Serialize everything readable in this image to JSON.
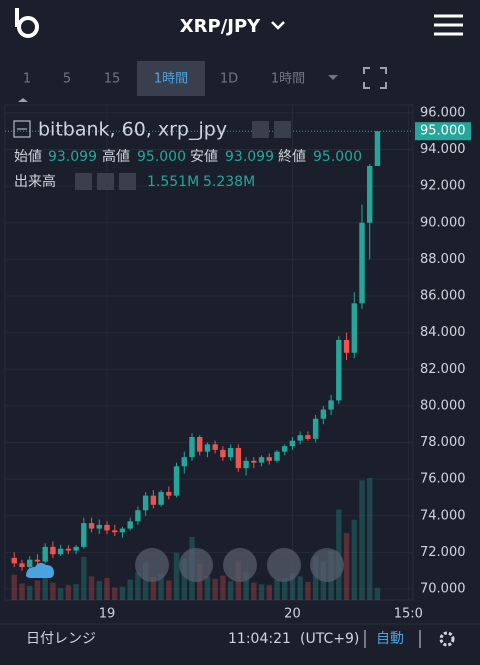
{
  "header": {
    "title": "XRP/JPY"
  },
  "toolbar": {
    "items": [
      "1",
      "5",
      "15",
      "1時間",
      "1D",
      "1時間"
    ]
  },
  "chart_data": {
    "type": "candlestick",
    "legend": {
      "title": "bitbank, 60, xrp_jpy",
      "open_label": "始値",
      "open": "93.099",
      "high_label": "高値",
      "high": "95.000",
      "low_label": "安値",
      "low": "93.099",
      "close_label": "終値",
      "close": "95.000",
      "volume_label": "出来高",
      "volume": "1.551M",
      "volume_ma": "5.238M"
    },
    "last_price_label": "95.000",
    "x": [
      -12,
      -11,
      -10,
      -9,
      -8,
      -7,
      -6,
      -5,
      -4,
      -3,
      -2,
      -1,
      0,
      1,
      2,
      3,
      4,
      5,
      6,
      7,
      8,
      9,
      10,
      11,
      12,
      13,
      14,
      15,
      16,
      17,
      18,
      19,
      20,
      21,
      22,
      23,
      24,
      25,
      26,
      27,
      28,
      29,
      30,
      31,
      32,
      33,
      34,
      35
    ],
    "open": [
      71.7,
      71.4,
      71.2,
      71.6,
      71.5,
      72.3,
      71.9,
      72.2,
      72.1,
      72.3,
      73.6,
      73.3,
      73.5,
      73.2,
      73.1,
      73.3,
      73.7,
      74.3,
      75.1,
      74.6,
      75.3,
      75.1,
      76.7,
      77.2,
      78.3,
      77.5,
      77.9,
      77.6,
      77.2,
      77.7,
      76.6,
      77.0,
      76.9,
      77.2,
      77.0,
      77.5,
      77.8,
      78.1,
      78.4,
      78.2,
      79.3,
      79.8,
      80.3,
      83.6,
      82.9,
      85.6,
      90.0,
      93.099
    ],
    "high": [
      72.0,
      71.6,
      71.8,
      71.9,
      72.5,
      72.6,
      72.4,
      72.4,
      72.4,
      73.9,
      73.9,
      73.8,
      73.7,
      73.5,
      73.4,
      73.9,
      74.5,
      75.3,
      75.4,
      75.4,
      75.6,
      76.9,
      77.5,
      78.5,
      78.4,
      78.0,
      78.1,
      77.8,
      77.9,
      77.9,
      77.2,
      77.2,
      77.3,
      77.4,
      77.6,
      77.9,
      78.3,
      78.6,
      78.6,
      79.5,
      80.0,
      80.6,
      83.8,
      84.0,
      86.2,
      91.0,
      93.2,
      95.0
    ],
    "low": [
      71.2,
      71.0,
      71.1,
      71.3,
      71.4,
      71.7,
      71.8,
      71.9,
      71.9,
      72.2,
      73.1,
      73.0,
      73.0,
      72.9,
      72.8,
      73.2,
      73.5,
      74.0,
      74.4,
      74.5,
      74.9,
      75.0,
      76.3,
      77.0,
      77.3,
      77.2,
      77.4,
      77.0,
      77.0,
      76.4,
      76.2,
      76.6,
      76.7,
      76.8,
      76.9,
      77.3,
      77.6,
      77.9,
      78.1,
      78.0,
      79.0,
      79.5,
      80.1,
      82.5,
      82.6,
      85.3,
      88.0,
      93.099
    ],
    "close": [
      71.4,
      71.2,
      71.6,
      71.5,
      72.3,
      71.9,
      72.2,
      72.1,
      72.3,
      73.6,
      73.3,
      73.5,
      73.2,
      73.1,
      73.3,
      73.7,
      74.3,
      75.1,
      74.6,
      75.3,
      75.1,
      76.7,
      77.2,
      78.3,
      77.5,
      77.9,
      77.6,
      77.2,
      77.7,
      76.6,
      77.0,
      76.9,
      77.2,
      77.0,
      77.5,
      77.8,
      78.1,
      78.4,
      78.2,
      79.3,
      79.8,
      80.3,
      83.6,
      82.9,
      85.6,
      90.0,
      93.099,
      95.0
    ],
    "volume": [
      3.2,
      2.1,
      1.8,
      2.5,
      4.0,
      2.2,
      1.5,
      1.9,
      2.0,
      5.5,
      3.0,
      2.4,
      2.8,
      1.6,
      1.7,
      2.6,
      3.5,
      4.8,
      2.9,
      3.3,
      2.5,
      6.0,
      5.2,
      8.0,
      4.6,
      3.0,
      2.7,
      3.1,
      2.4,
      5.0,
      3.6,
      2.2,
      2.0,
      1.9,
      2.6,
      2.8,
      3.4,
      3.0,
      2.3,
      5.6,
      4.9,
      6.2,
      11.5,
      8.5,
      10.2,
      15.2,
      15.5,
      1.551
    ],
    "up_color": "#26a69a",
    "down_color": "#ef5350",
    "xlim": [
      -13.2,
      39.6
    ],
    "ylim": [
      69.4,
      96.43
    ],
    "volume_lim": [
      0,
      62.9
    ],
    "xticks": [
      {
        "value": 0,
        "label": "19"
      },
      {
        "value": 24,
        "label": "20"
      },
      {
        "value": 39,
        "label": "15:0"
      }
    ],
    "yticks": [
      {
        "value": 70,
        "label": "70.000"
      },
      {
        "value": 72,
        "label": "72.000"
      },
      {
        "value": 74,
        "label": "74.000"
      },
      {
        "value": 76,
        "label": "76.000"
      },
      {
        "value": 78,
        "label": "78.000"
      },
      {
        "value": 80,
        "label": "80.000"
      },
      {
        "value": 82,
        "label": "82.000"
      },
      {
        "value": 84,
        "label": "84.000"
      },
      {
        "value": 86,
        "label": "86.000"
      },
      {
        "value": 88,
        "label": "88.000"
      },
      {
        "value": 90,
        "label": "90.000"
      },
      {
        "value": 92,
        "label": "92.000"
      },
      {
        "value": 94,
        "label": "94.000"
      },
      {
        "value": 96,
        "label": "96.000"
      }
    ],
    "grid": true
  },
  "footer": {
    "range": "日付レンジ",
    "time": "11:04:21",
    "timezone": "(UTC+9)",
    "auto": "自動"
  }
}
